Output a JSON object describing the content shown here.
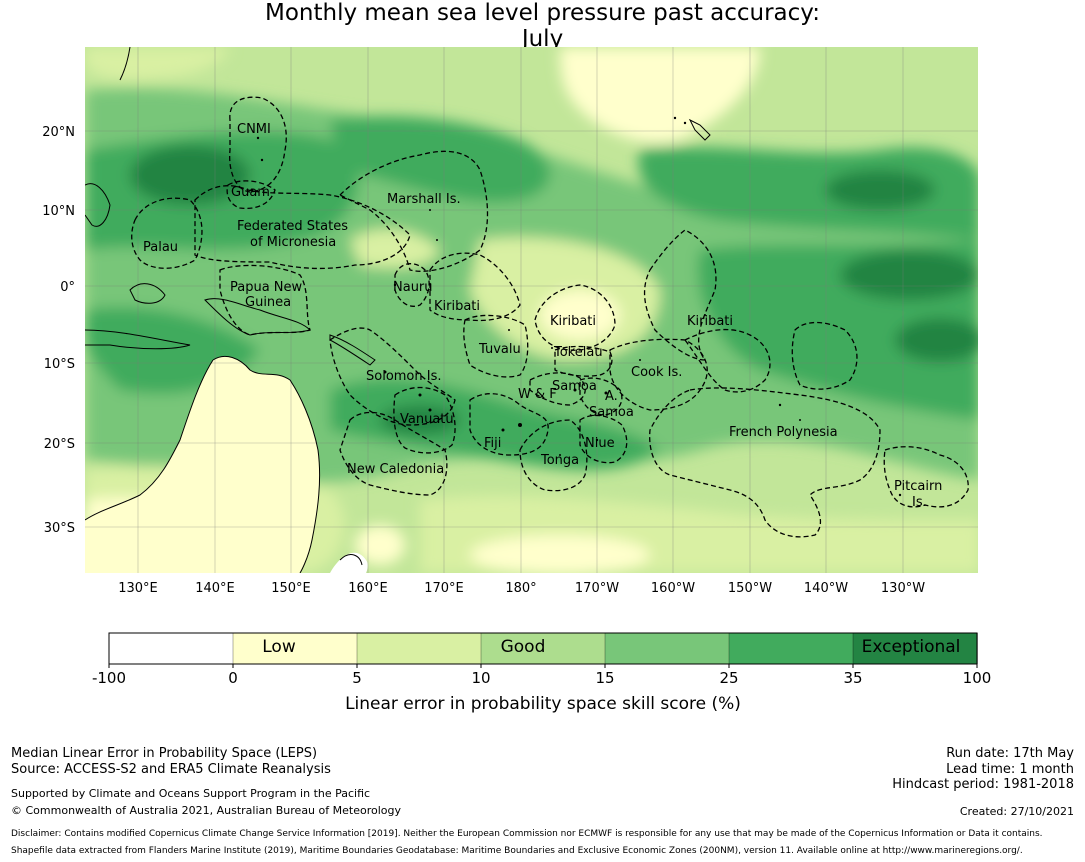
{
  "title": {
    "line1": "Monthly mean sea level pressure past accuracy:",
    "line2": "July"
  },
  "map": {
    "lon_ticks": [
      "130°E",
      "140°E",
      "150°E",
      "160°E",
      "170°E",
      "180°",
      "170°W",
      "160°W",
      "150°W",
      "140°W",
      "130°W"
    ],
    "lat_ticks": [
      "20°N",
      "10°N",
      "0°",
      "10°S",
      "20°S",
      "30°S"
    ],
    "regions": [
      "CNMI",
      "Guam",
      "Marshall Is.",
      "Federated States",
      "of Micronesia",
      "Palau",
      "Papua New",
      "Guinea",
      "Nauru",
      "Kiribati",
      "Kiribati",
      "Kiribati",
      "Tuvalu",
      "Tokelau",
      "Solomon Is.",
      "Samoa",
      "W & F",
      "A.",
      "Samoa",
      "Cook Is.",
      "Vanuatu",
      "Fiji",
      "Niue",
      "French Polynesia",
      "Tonga",
      "New Caledonia",
      "Pitcairn",
      "Is."
    ],
    "colors": {
      "ocean_low": "#ffffcc",
      "ocean_good": "#c2e699",
      "ocean_exceptional": "#238443",
      "land": "#ffffff"
    }
  },
  "colorbar": {
    "boundaries": [
      "-100",
      "0",
      "5",
      "10",
      "15",
      "25",
      "35",
      "100"
    ],
    "categories": [
      "Low",
      "Good",
      "Exceptional"
    ],
    "colors": [
      "#ffffff",
      "#ffffcc",
      "#d9f0a3",
      "#addd8e",
      "#78c679",
      "#41ab5d",
      "#238443"
    ],
    "label": "Linear error in probability space skill score (%)"
  },
  "footer": {
    "left1": "Median Linear Error in Probability Space (LEPS)",
    "left2": "Source: ACCESS-S2 and ERA5 Climate Reanalysis",
    "left3": "Supported by Climate and Oceans Support Program in the Pacific",
    "left4": "© Commonwealth of Australia 2021, Australian Bureau of Meteorology",
    "run_date": "Run date: 17th May",
    "lead_time": "Lead time: 1 month",
    "hindcast": "Hindcast period: 1981-2018",
    "created": "Created: 27/10/2021",
    "disclaimer": "Disclaimer: Contains modified Copernicus Climate Change Service Information [2019]. Neither the European Commission nor ECMWF is responsible for any use that may be made of the Copernicus Information or Data it contains.",
    "shapefile": "Shapefile data extracted from Flanders Marine Institute (2019), Maritime Boundaries Geodatabase: Maritime Boundaries and Exclusive Economic Zones (200NM), version 11. Available online at http://www.marineregions.org/."
  }
}
